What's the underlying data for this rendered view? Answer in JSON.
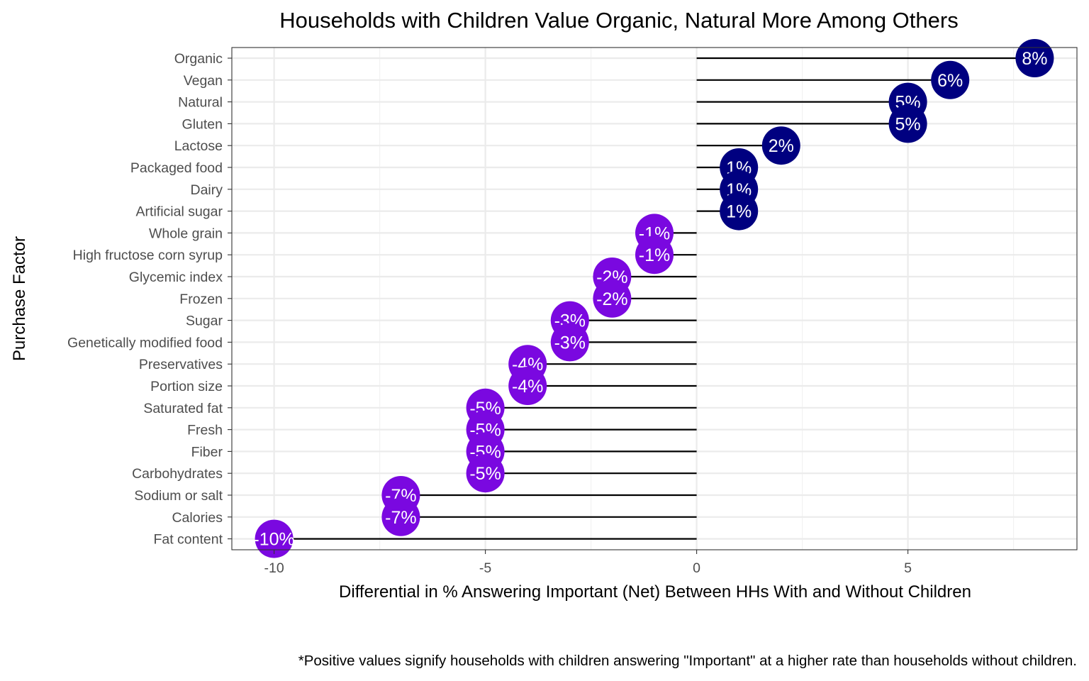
{
  "chart_data": {
    "type": "lollipop",
    "title": "Households with Children Value Organic, Natural More Among Others",
    "xlabel": "Differential in % Answering Important (Net) Between HHs With and Without Children",
    "ylabel": "Purchase Factor",
    "caption": "*Positive values signify households with children answering \"Important\" at a higher rate than households without children.",
    "xlim": [
      -11,
      9
    ],
    "x_ticks": [
      -10,
      -5,
      0,
      5
    ],
    "x_tick_labels": [
      "-10",
      "-5",
      "0",
      "5"
    ],
    "grid": true,
    "colors": {
      "positive": "#000080",
      "negative": "#7a08e0",
      "stem": "#000000",
      "grid_major": "#ebebeb",
      "grid_minor": "#f2f2f2",
      "panel_border": "#333333"
    },
    "categories": [
      "Organic",
      "Vegan",
      "Natural",
      "Gluten",
      "Lactose",
      "Packaged food",
      "Dairy",
      "Artificial sugar",
      "Whole grain",
      "High fructose corn syrup",
      "Glycemic index",
      "Frozen",
      "Sugar",
      "Genetically modified food",
      "Preservatives",
      "Portion size",
      "Saturated fat",
      "Fresh",
      "Fiber",
      "Carbohydrates",
      "Sodium or salt",
      "Calories",
      "Fat content"
    ],
    "values": [
      8,
      6,
      5,
      5,
      2,
      1,
      1,
      1,
      -1,
      -1,
      -2,
      -2,
      -3,
      -3,
      -4,
      -4,
      -5,
      -5,
      -5,
      -5,
      -7,
      -7,
      -10
    ],
    "point_labels": [
      "8%",
      "6%",
      "5%",
      "5%",
      "2%",
      "1%",
      "1%",
      "1%",
      "-1%",
      "-1%",
      "-2%",
      "-2%",
      "-3%",
      "-3%",
      "-4%",
      "-4%",
      "-5%",
      "-5%",
      "-5%",
      "-5%",
      "-7%",
      "-7%",
      "-10%"
    ]
  }
}
